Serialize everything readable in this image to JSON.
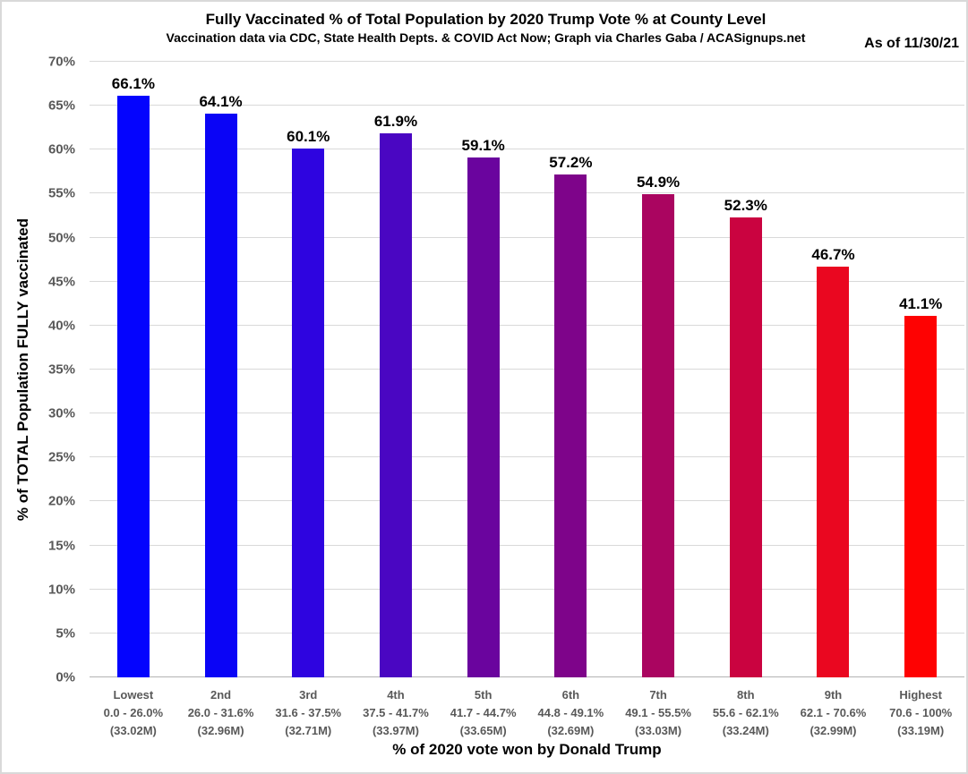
{
  "header": {
    "title": "Fully Vaccinated % of Total Population by 2020 Trump Vote % at County Level",
    "subtitle": "Vaccination data via CDC, State Health Depts. & COVID Act Now; Graph via Charles Gaba / ACASignups.net",
    "as_of": "As of 11/30/21"
  },
  "chart_data": {
    "type": "bar",
    "title": "Fully Vaccinated % of Total Population by 2020 Trump Vote % at County Level",
    "subtitle": "Vaccination data via CDC, State Health Depts. & COVID Act Now; Graph via Charles Gaba / ACASignups.net",
    "xlabel": "% of 2020 vote won by Donald Trump",
    "ylabel": "% of TOTAL Population FULLY vaccinated",
    "ylim": [
      0,
      70
    ],
    "ytick_step": 5,
    "ytick_suffix": "%",
    "grid": true,
    "legend": "none",
    "categories": [
      {
        "tier": "Lowest",
        "range": "0.0 - 26.0%",
        "population": "(33.02M)"
      },
      {
        "tier": "2nd",
        "range": "26.0 - 31.6%",
        "population": "(32.96M)"
      },
      {
        "tier": "3rd",
        "range": "31.6 - 37.5%",
        "population": "(32.71M)"
      },
      {
        "tier": "4th",
        "range": "37.5 - 41.7%",
        "population": "(33.97M)"
      },
      {
        "tier": "5th",
        "range": "41.7 - 44.7%",
        "population": "(33.65M)"
      },
      {
        "tier": "6th",
        "range": "44.8 - 49.1%",
        "population": "(32.69M)"
      },
      {
        "tier": "7th",
        "range": "49.1 - 55.5%",
        "population": "(33.03M)"
      },
      {
        "tier": "8th",
        "range": "55.6 - 62.1%",
        "population": "(33.24M)"
      },
      {
        "tier": "9th",
        "range": "62.1 - 70.6%",
        "population": "(32.99M)"
      },
      {
        "tier": "Highest",
        "range": "70.6 - 100%",
        "population": "(33.19M)"
      }
    ],
    "values": [
      66.1,
      64.1,
      60.1,
      61.9,
      59.1,
      57.2,
      54.9,
      52.3,
      46.7,
      41.1
    ],
    "value_labels": [
      "66.1%",
      "64.1%",
      "60.1%",
      "61.9%",
      "59.1%",
      "57.2%",
      "54.9%",
      "52.3%",
      "46.7%",
      "41.1%"
    ],
    "bar_colors": [
      "#0404fe",
      "#0a04f6",
      "#2e04e0",
      "#4a06c2",
      "#6a049e",
      "#7e048a",
      "#aa0560",
      "#ca0340",
      "#ea0720",
      "#fe0202"
    ],
    "style_colors": {
      "grid": "#d9d9d9",
      "axis_line": "#b3b3b3",
      "tick_text": "#595959",
      "label_text": "#000000"
    }
  }
}
